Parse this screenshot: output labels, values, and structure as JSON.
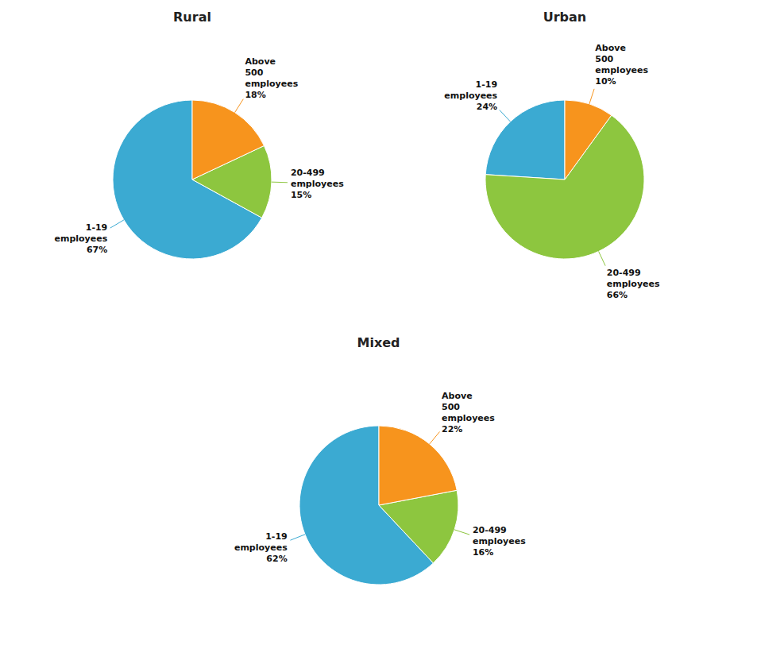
{
  "chart_data": [
    {
      "type": "pie",
      "title": "Rural",
      "categories": [
        "1-19\nemployees",
        "20-499\nemployees",
        "Above\n500\nemployees"
      ],
      "values": [
        67,
        15,
        18
      ],
      "value_labels": [
        "67%",
        "15%",
        "18%"
      ],
      "colors": [
        "#3BAAD2",
        "#8DC63F",
        "#F7941D"
      ],
      "data_labels": true
    },
    {
      "type": "pie",
      "title": "Urban",
      "categories": [
        "1-19\nemployees",
        "20-499\nemployees",
        "Above\n500\nemployees"
      ],
      "values": [
        24,
        66,
        10
      ],
      "value_labels": [
        "24%",
        "66%",
        "10%"
      ],
      "colors": [
        "#3BAAD2",
        "#8DC63F",
        "#F7941D"
      ],
      "data_labels": true
    },
    {
      "type": "pie",
      "title": "Mixed",
      "categories": [
        "1-19\nemployees",
        "20-499\nemployees",
        "Above\n500\nemployees"
      ],
      "values": [
        62,
        16,
        22
      ],
      "value_labels": [
        "62%",
        "16%",
        "22%"
      ],
      "colors": [
        "#3BAAD2",
        "#8DC63F",
        "#F7941D"
      ],
      "data_labels": true
    }
  ]
}
